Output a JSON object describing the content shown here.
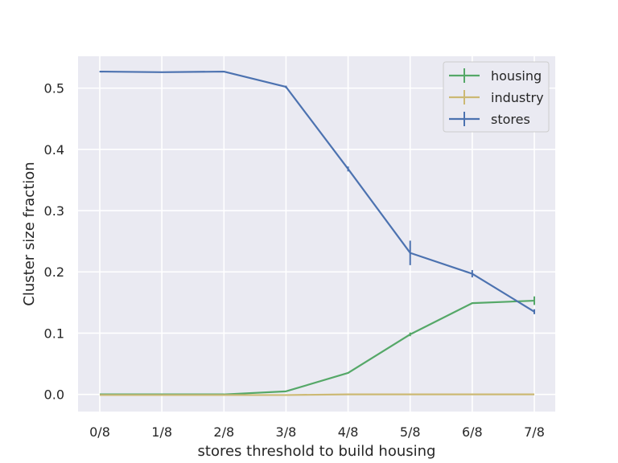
{
  "chart_data": {
    "type": "line",
    "title": "",
    "xlabel": "stores threshold to build housing",
    "ylabel": "Cluster size fraction",
    "categories": [
      "0/8",
      "1/8",
      "2/8",
      "3/8",
      "4/8",
      "5/8",
      "6/8",
      "7/8"
    ],
    "ylim": [
      -0.028,
      0.552
    ],
    "yticks": [
      0.0,
      0.1,
      0.2,
      0.3,
      0.4,
      0.5
    ],
    "ytick_labels": [
      "0.0",
      "0.1",
      "0.2",
      "0.3",
      "0.4",
      "0.5"
    ],
    "grid": true,
    "legend_position": "top-right",
    "series": [
      {
        "name": "housing",
        "color": "#55a868",
        "values": [
          0.0,
          0.0,
          0.0,
          0.005,
          0.035,
          0.098,
          0.149,
          0.153
        ],
        "errors": [
          0.0,
          0.0,
          0.0,
          0.0005,
          0.001,
          0.003,
          0.001,
          0.007
        ]
      },
      {
        "name": "industry",
        "color": "#ccb974",
        "values": [
          -0.001,
          -0.001,
          -0.001,
          -0.001,
          0.0,
          0.0,
          0.0,
          0.0
        ],
        "errors": [
          0.0,
          0.0,
          0.0,
          0.0,
          0.0,
          0.0,
          0.0,
          0.0
        ]
      },
      {
        "name": "stores",
        "color": "#4c72b0",
        "values": [
          0.527,
          0.526,
          0.527,
          0.502,
          0.368,
          0.231,
          0.197,
          0.135
        ],
        "errors": [
          0.0005,
          0.0005,
          0.0005,
          0.002,
          0.004,
          0.02,
          0.006,
          0.004
        ]
      }
    ]
  }
}
